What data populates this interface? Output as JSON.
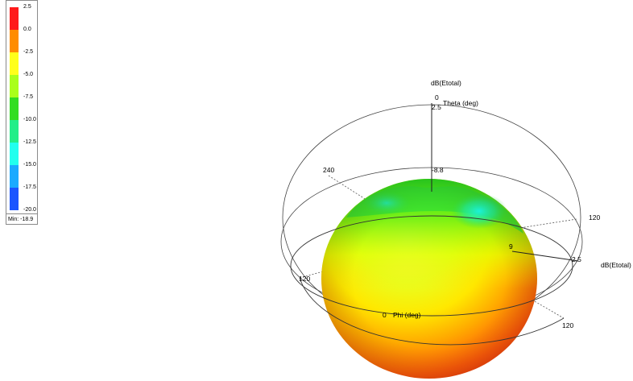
{
  "legend": {
    "ticks": [
      "2.5",
      "0.0",
      "-2.5",
      "-5.0",
      "-7.5",
      "-10.0",
      "-12.5",
      "-15.0",
      "-17.5",
      "-20.0"
    ],
    "colors": [
      "#ff1a1a",
      "#ff8c00",
      "#ffff1a",
      "#aaff1a",
      "#33dd22",
      "#22ee88",
      "#22ffee",
      "#1aaaff",
      "#1a55ff",
      "#0000e0"
    ],
    "min_label": "Min: -18.9"
  },
  "plot": {
    "quantity_label_top": "dB(Etotal)",
    "quantity_label_right": "dB(Etotal)",
    "theta_zero": "0",
    "theta_axis_label": "Theta (deg)",
    "theta_max_mark": "2.5",
    "level_mark_top": "-8.8",
    "level_mark_side": "9",
    "level_mark_right": "2.5",
    "angle_240": "240",
    "angle_120_right": "120",
    "angle_120_left": "120",
    "angle_120_bottom": "120",
    "phi_zero": "0",
    "phi_axis_label": "Phi (deg)"
  }
}
